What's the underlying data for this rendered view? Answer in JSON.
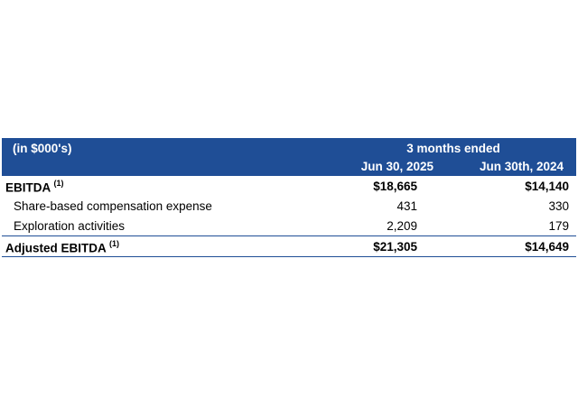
{
  "header": {
    "unit_label": "(in $000's)",
    "period_label": "3 months ended",
    "col1": "Jun 30, 2025",
    "col2": "Jun 30th, 2024"
  },
  "rows": [
    {
      "label": "EBITDA",
      "note": "(1)",
      "v1": "$18,665",
      "v2": "$14,140"
    },
    {
      "label": "Share-based compensation expense",
      "v1": "431",
      "v2": "330"
    },
    {
      "label": "Exploration activities",
      "v1": "2,209",
      "v2": "179"
    },
    {
      "label": "Adjusted EBITDA",
      "note": "(1)",
      "v1": "$21,305",
      "v2": "$14,649"
    }
  ],
  "colors": {
    "header_bg": "#1f4e96",
    "header_text": "#ffffff"
  }
}
